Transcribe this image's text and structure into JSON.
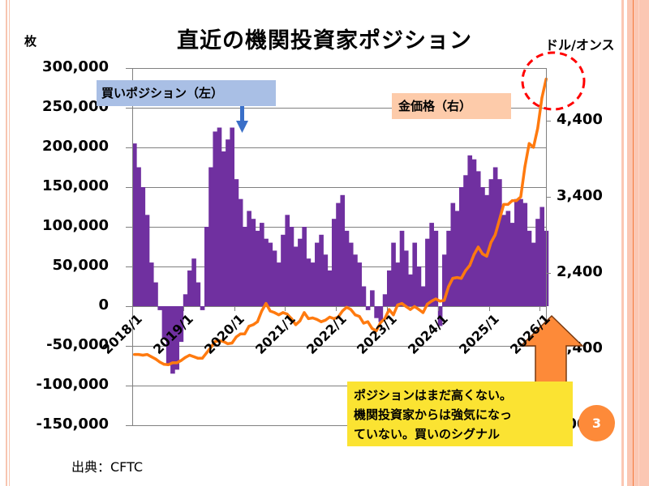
{
  "slide": {
    "title": "直近の機関投資家ポジション",
    "left_unit": "枚",
    "right_unit": "ドル/オンス",
    "source": "出典：CFTC",
    "slide_number": "3",
    "callout_lines": [
      "ポジションはまだ高くない。",
      "機関投資家からは強気になっ",
      "ていない。買いのシグナル"
    ],
    "colors": {
      "bars": "#7030a0",
      "gold_line": "#ff7a0f",
      "buy_label_bg": "#a9bfe5",
      "gold_label_bg": "#fdcbaa",
      "callout_bg": "#fbe332",
      "arrow": "#fd8a39",
      "circle": "#ff0000",
      "pointer": "#3a6fc8"
    }
  },
  "chart_data": {
    "type": "bar+line",
    "title": "直近の機関投資家ポジション",
    "xlabel": "",
    "ylabel_left": "枚",
    "ylabel_right": "ドル/オンス",
    "ylim_left": [
      -150000,
      300000
    ],
    "ylim_right": [
      400,
      5200
    ],
    "left_ticks": [
      "300,000",
      "250,000",
      "200,000",
      "150,000",
      "100,000",
      "50,000",
      "0",
      "-50,000",
      "-100,000",
      "-150,000"
    ],
    "left_tick_values": [
      300000,
      250000,
      200000,
      150000,
      100000,
      50000,
      0,
      -50000,
      -100000,
      -150000
    ],
    "right_ticks": [
      "4,400",
      "3,400",
      "2,400",
      "1,400",
      "400"
    ],
    "right_tick_values": [
      4400,
      3400,
      2400,
      1400,
      400
    ],
    "x_tick_labels": [
      "2018/1",
      "2019/1",
      "2020/1",
      "2021/1",
      "2022/1",
      "2023/1",
      "2024/1",
      "2025/1",
      "2026/1"
    ],
    "grid": true,
    "legend": [
      {
        "name": "買いポジション（左）",
        "placement": "top-left"
      },
      {
        "name": "金価格（右）",
        "placement": "top-right"
      }
    ],
    "x": [
      "2018/1",
      "2018/2",
      "2018/3",
      "2018/4",
      "2018/5",
      "2018/6",
      "2018/7",
      "2018/8",
      "2018/9",
      "2018/10",
      "2018/11",
      "2018/12",
      "2019/1",
      "2019/2",
      "2019/3",
      "2019/4",
      "2019/5",
      "2019/6",
      "2019/7",
      "2019/8",
      "2019/9",
      "2019/10",
      "2019/11",
      "2019/12",
      "2020/1",
      "2020/2",
      "2020/3",
      "2020/4",
      "2020/5",
      "2020/6",
      "2020/7",
      "2020/8",
      "2020/9",
      "2020/10",
      "2020/11",
      "2020/12",
      "2021/1",
      "2021/2",
      "2021/3",
      "2021/4",
      "2021/5",
      "2021/6",
      "2021/7",
      "2021/8",
      "2021/9",
      "2021/10",
      "2021/11",
      "2021/12",
      "2022/1",
      "2022/2",
      "2022/3",
      "2022/4",
      "2022/5",
      "2022/6",
      "2022/7",
      "2022/8",
      "2022/9",
      "2022/10",
      "2022/11",
      "2022/12",
      "2023/1",
      "2023/2",
      "2023/3",
      "2023/4",
      "2023/5",
      "2023/6",
      "2023/7",
      "2023/8",
      "2023/9",
      "2023/10",
      "2023/11",
      "2023/12",
      "2024/1",
      "2024/2",
      "2024/3",
      "2024/4",
      "2024/5",
      "2024/6",
      "2024/7",
      "2024/8",
      "2024/9",
      "2024/10",
      "2024/11",
      "2024/12",
      "2025/1",
      "2025/2",
      "2025/3",
      "2025/4",
      "2025/5",
      "2025/6",
      "2025/7",
      "2025/8",
      "2025/9",
      "2025/10",
      "2025/11",
      "2025/12",
      "2026/1",
      "2026/2"
    ],
    "series": [
      {
        "name": "買いポジション（左）",
        "type": "bar",
        "axis": "left",
        "values": [
          205000,
          175000,
          150000,
          115000,
          55000,
          30000,
          -5000,
          -40000,
          -75000,
          -85000,
          -80000,
          -45000,
          15000,
          45000,
          60000,
          30000,
          -5000,
          100000,
          175000,
          220000,
          225000,
          195000,
          210000,
          225000,
          160000,
          135000,
          100000,
          120000,
          110000,
          95000,
          105000,
          85000,
          80000,
          70000,
          55000,
          90000,
          115000,
          100000,
          75000,
          85000,
          100000,
          60000,
          55000,
          80000,
          90000,
          65000,
          45000,
          110000,
          130000,
          140000,
          95000,
          80000,
          65000,
          55000,
          25000,
          -5000,
          20000,
          -15000,
          -20000,
          15000,
          45000,
          80000,
          55000,
          95000,
          70000,
          40000,
          80000,
          50000,
          25000,
          85000,
          105000,
          95000,
          -25000,
          65000,
          95000,
          130000,
          120000,
          150000,
          165000,
          190000,
          185000,
          170000,
          150000,
          140000,
          160000,
          175000,
          160000,
          115000,
          120000,
          105000,
          135000,
          135000,
          130000,
          95000,
          80000,
          110000,
          125000,
          95000
        ]
      },
      {
        "name": "金価格（右）",
        "type": "line",
        "axis": "right",
        "values": [
          1330,
          1330,
          1320,
          1330,
          1300,
          1270,
          1230,
          1200,
          1195,
          1220,
          1220,
          1250,
          1290,
          1320,
          1300,
          1280,
          1280,
          1350,
          1420,
          1500,
          1510,
          1500,
          1470,
          1480,
          1560,
          1600,
          1600,
          1700,
          1720,
          1760,
          1900,
          2000,
          1900,
          1880,
          1850,
          1880,
          1860,
          1800,
          1720,
          1770,
          1880,
          1800,
          1810,
          1790,
          1760,
          1780,
          1820,
          1800,
          1820,
          1900,
          1950,
          1920,
          1850,
          1830,
          1740,
          1760,
          1670,
          1640,
          1750,
          1800,
          1920,
          1850,
          1980,
          2000,
          1960,
          1920,
          1960,
          1920,
          1880,
          1990,
          2030,
          2060,
          2030,
          2040,
          2220,
          2330,
          2340,
          2330,
          2430,
          2500,
          2640,
          2740,
          2650,
          2620,
          2800,
          2900,
          3100,
          3300,
          3300,
          3350,
          3350,
          3400,
          3800,
          4100,
          4050,
          4300,
          4700,
          4950
        ]
      }
    ],
    "annotations": [
      "買いポジション（左）",
      "金価格（右）",
      "ポジションはまだ高くない。機関投資家からは強気になっていない。買いのシグナル"
    ]
  }
}
